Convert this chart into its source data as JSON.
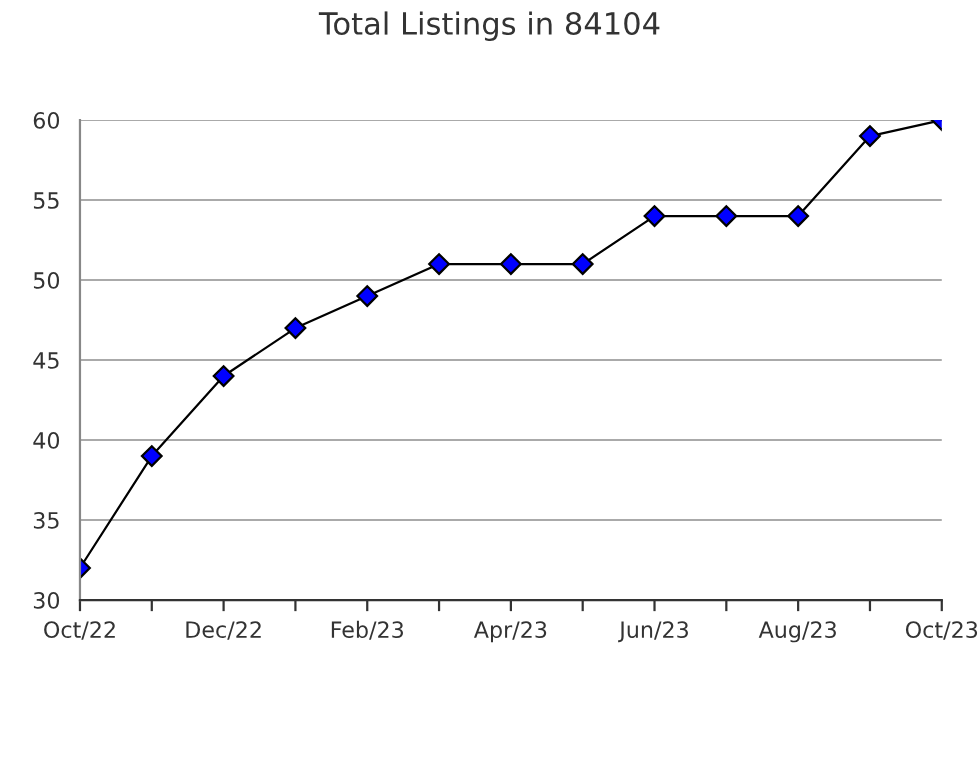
{
  "chart_data": {
    "type": "line",
    "title": "Total Listings in 84104",
    "categories": [
      "Oct/22",
      null,
      "Dec/22",
      null,
      "Feb/23",
      null,
      "Apr/23",
      null,
      "Jun/23",
      null,
      "Aug/23",
      null,
      "Oct/23"
    ],
    "series": [
      {
        "color": "#0000ff",
        "values": [
          32,
          39,
          44,
          47,
          49,
          51,
          51,
          51,
          54,
          54,
          54,
          59,
          60
        ]
      }
    ],
    "ylim": [
      30,
      60
    ],
    "yticks": [
      30,
      35,
      40,
      45,
      50,
      55,
      60
    ],
    "grid": "y",
    "marker": "diamond",
    "line_style": "solid",
    "legend": false
  }
}
